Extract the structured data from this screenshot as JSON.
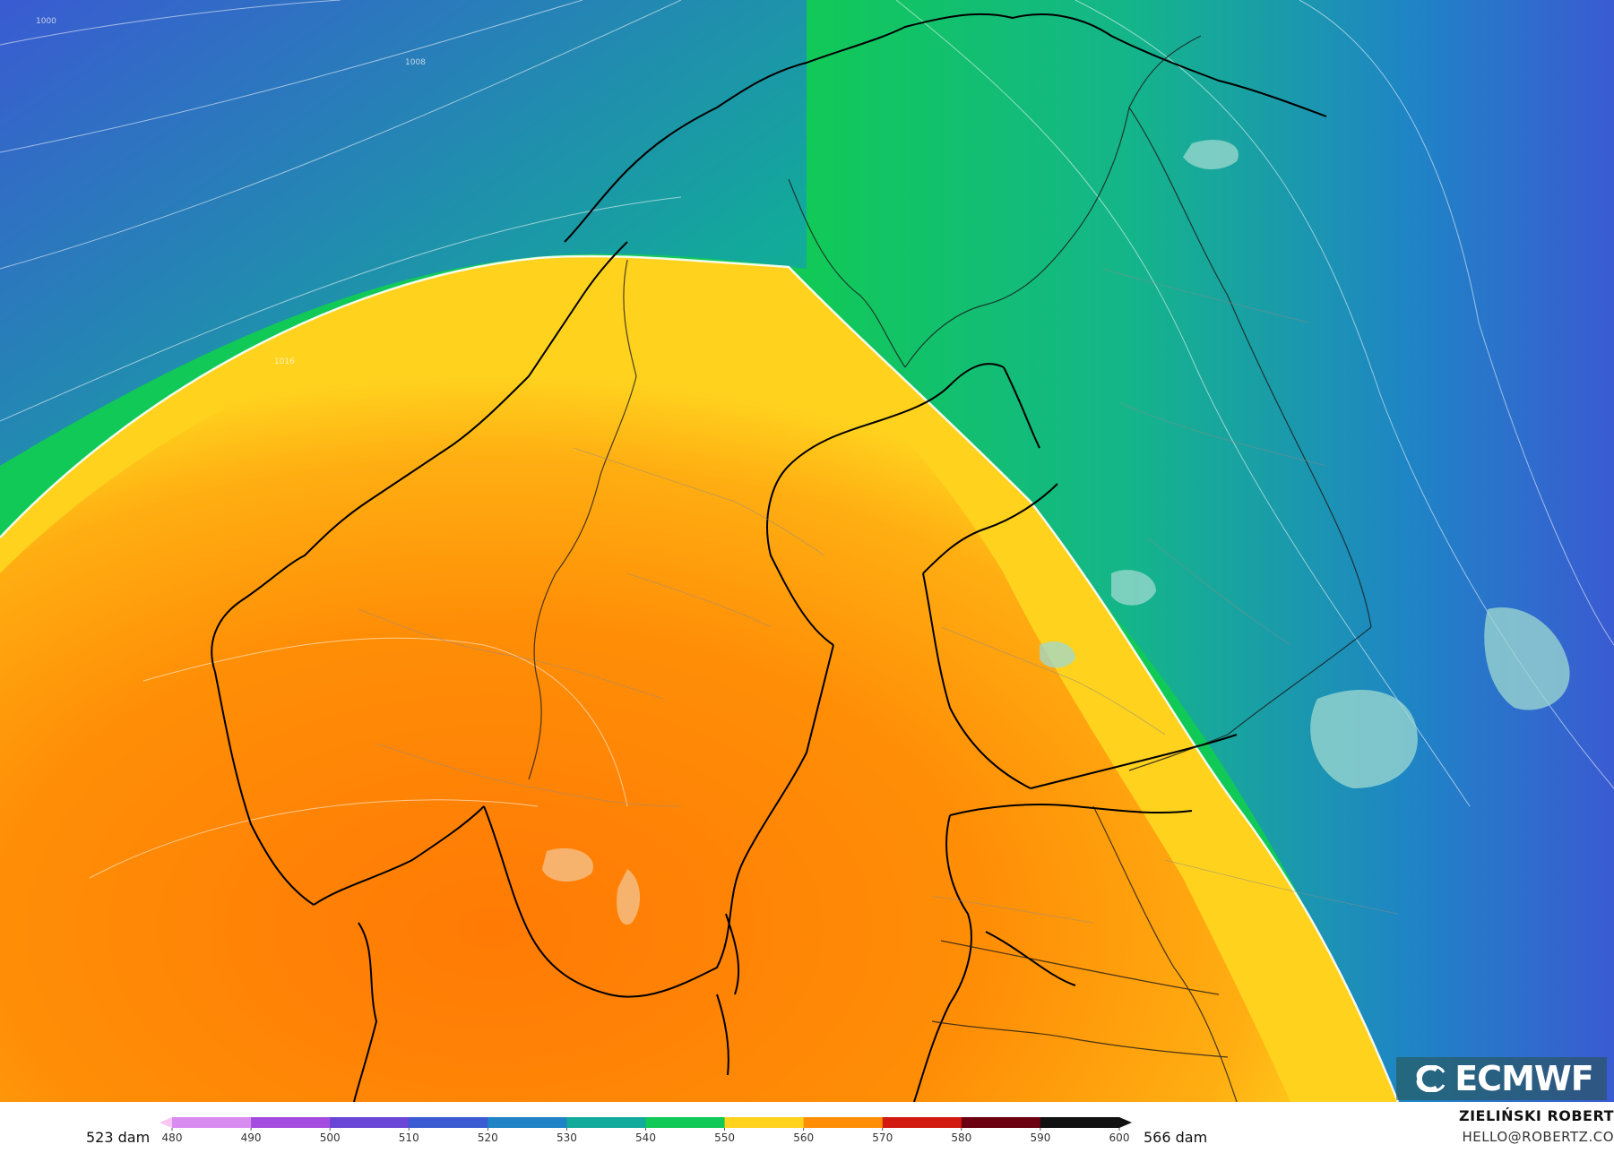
{
  "legend": {
    "min_label": "523 dam",
    "max_label": "566 dam",
    "ticks": [
      "480",
      "490",
      "500",
      "510",
      "520",
      "530",
      "540",
      "550",
      "560",
      "570",
      "580",
      "590",
      "600"
    ],
    "colors": [
      "#f7c6f3",
      "#d98cef",
      "#a44be0",
      "#6a46d6",
      "#3a5bd2",
      "#1f84c6",
      "#12aa9a",
      "#11c957",
      "#ffd21e",
      "#ff8e06",
      "#d11a10",
      "#6a0010",
      "#111111"
    ]
  },
  "map": {
    "isobar_labels": [
      "1000",
      "1008",
      "1016"
    ]
  },
  "branding": {
    "logo_text": "ECMWF",
    "author_name": "ZIELIŃSKI ROBERT",
    "author_email": "HELLO@ROBERTZ.CO"
  }
}
